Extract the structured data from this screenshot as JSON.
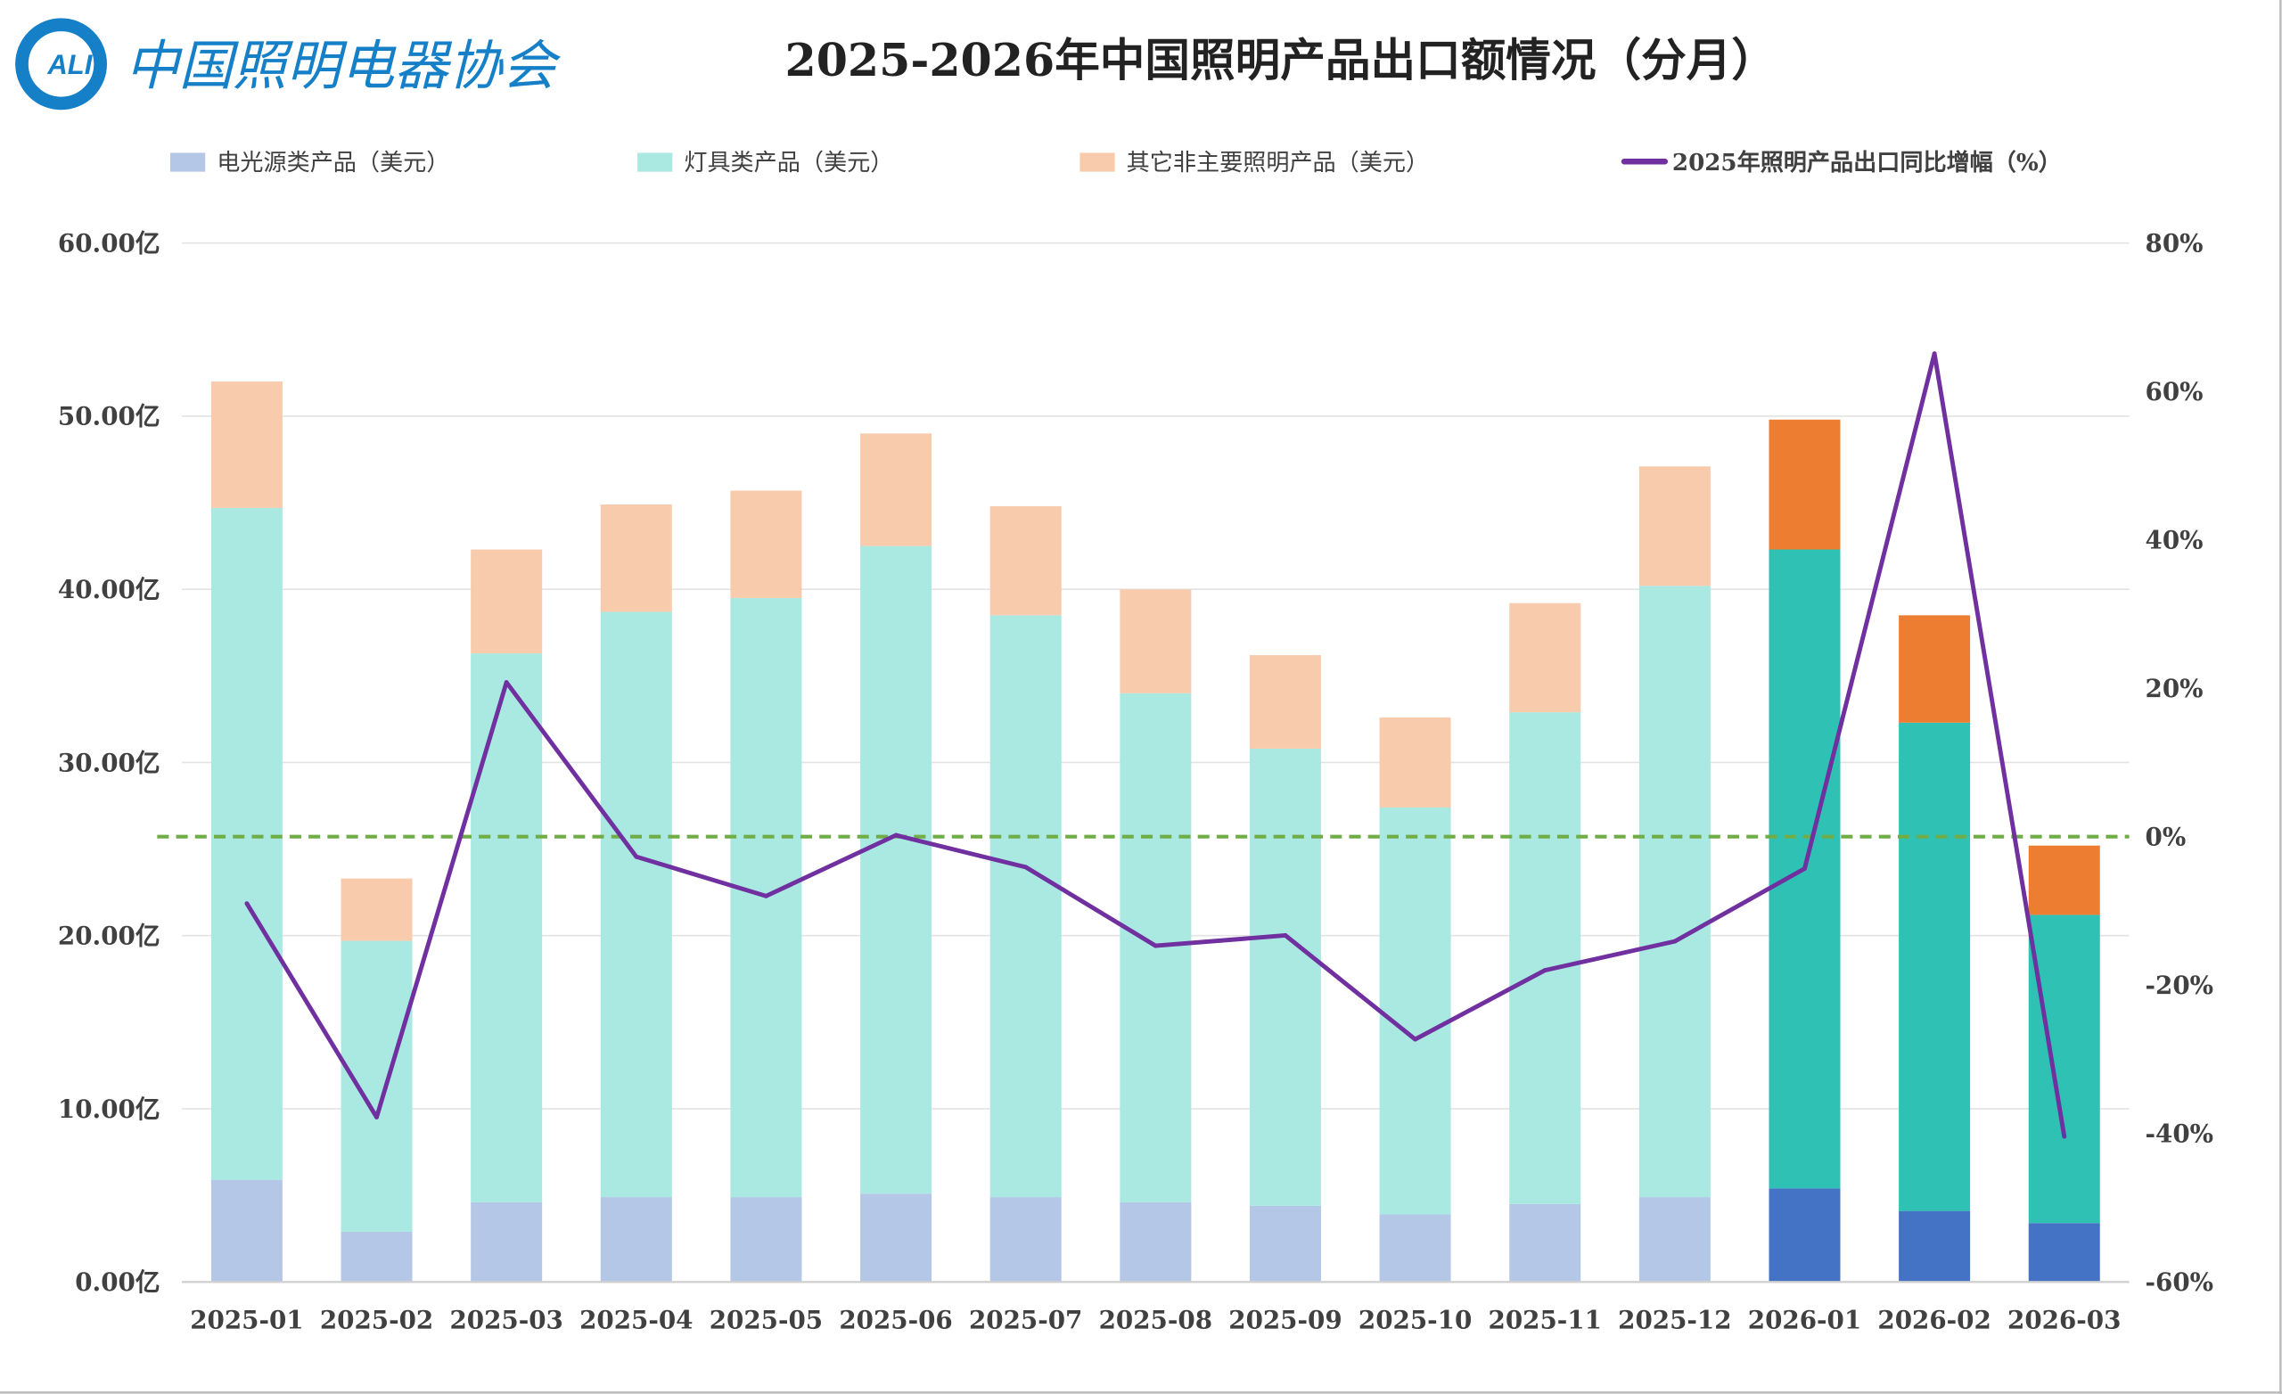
{
  "logo": {
    "mark_text": "ALI",
    "name": "中国照明电器协会",
    "color": "#1580C8"
  },
  "chart_data": {
    "type": "bar",
    "stacked": true,
    "title": "2025-2026年中国照明产品出口额情况（分月）",
    "categories": [
      "2025-01",
      "2025-02",
      "2025-03",
      "2025-04",
      "2025-05",
      "2025-06",
      "2025-07",
      "2025-08",
      "2025-09",
      "2025-10",
      "2025-11",
      "2025-12",
      "2026-01",
      "2026-02",
      "2026-03"
    ],
    "series": [
      {
        "name": "电光源类产品（美元）",
        "type": "bar",
        "axis": "left",
        "color": "#B4C7E7",
        "color_2026": "#4472C4",
        "values": [
          5.9,
          2.9,
          4.6,
          4.9,
          4.9,
          5.1,
          4.9,
          4.6,
          4.4,
          3.9,
          4.5,
          4.9,
          5.4,
          4.1,
          3.4
        ]
      },
      {
        "name": "灯具类产品（美元）",
        "type": "bar",
        "axis": "left",
        "color": "#A9E9E2",
        "color_2026": "#2EC1B4",
        "values": [
          38.8,
          16.8,
          31.7,
          33.8,
          34.6,
          37.4,
          33.6,
          29.4,
          26.4,
          23.5,
          28.4,
          35.3,
          36.9,
          28.2,
          17.8
        ]
      },
      {
        "name": "其它非主要照明产品（美元）",
        "type": "bar",
        "axis": "left",
        "color": "#F8CBAD",
        "color_2026": "#ED7D31",
        "values": [
          7.3,
          3.6,
          6.0,
          6.2,
          6.2,
          6.5,
          6.3,
          6.0,
          5.4,
          5.2,
          6.3,
          6.9,
          7.5,
          6.2,
          4.0
        ]
      },
      {
        "name": "2025年照明产品出口同比增幅（%）",
        "type": "line",
        "axis": "right",
        "color": "#7030A0",
        "values": [
          -9.0,
          -37.8,
          20.8,
          -2.7,
          -8.0,
          0.2,
          -4.1,
          -14.7,
          -13.3,
          -27.3,
          -18.0,
          -14.1,
          -4.3,
          65.1,
          -40.4
        ]
      }
    ],
    "reference_line": {
      "axis": "right",
      "value": 0,
      "style": "dashed",
      "color": "#70AD47"
    },
    "y_left": {
      "ylim": [
        0,
        60
      ],
      "ticks": [
        "0.00亿",
        "10.00亿",
        "20.00亿",
        "30.00亿",
        "40.00亿",
        "50.00亿",
        "60.00亿"
      ]
    },
    "y_right": {
      "ylim": [
        -60,
        80
      ],
      "ticks": [
        "-60%",
        "-40%",
        "-20%",
        "0%",
        "20%",
        "40%",
        "60%",
        "80%"
      ]
    },
    "grid": true,
    "legend_position": "top"
  }
}
